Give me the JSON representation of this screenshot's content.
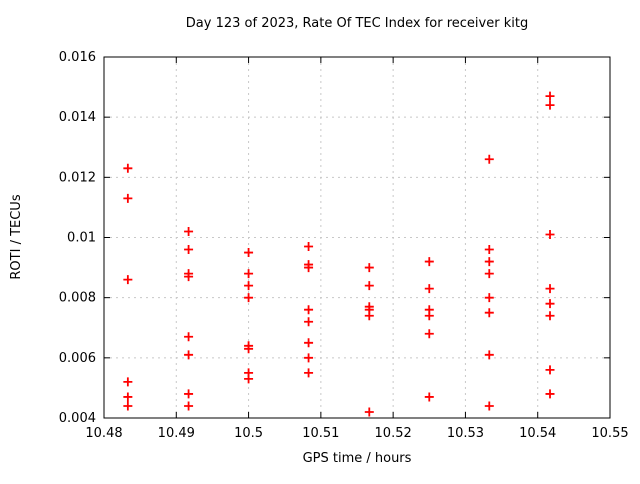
{
  "chart_data": {
    "type": "scatter",
    "title": "Day 123 of 2023, Rate Of TEC Index for receiver kitg",
    "xlabel": "GPS time / hours",
    "ylabel": "ROTI / TECUs",
    "xlim": [
      10.48,
      10.55
    ],
    "ylim": [
      0.004,
      0.016
    ],
    "xticks": [
      10.48,
      10.49,
      10.5,
      10.51,
      10.52,
      10.53,
      10.54,
      10.55
    ],
    "xtick_labels": [
      "10.48",
      "10.49",
      "10.5",
      "10.51",
      "10.52",
      "10.53",
      "10.54",
      "10.55"
    ],
    "yticks": [
      0.004,
      0.006,
      0.008,
      0.01,
      0.012,
      0.014,
      0.016
    ],
    "ytick_labels": [
      "0.004",
      "0.006",
      "0.008",
      "0.01",
      "0.012",
      "0.014",
      "0.016"
    ],
    "grid": true,
    "legend": "none",
    "marker": "plus",
    "marker_color": "#ff0000",
    "grid_color": "#c8c8c8",
    "border_color": "#000000",
    "background_color": "#ffffff",
    "series": [
      {
        "name": "ROTI",
        "points": [
          [
            10.4833,
            0.0123
          ],
          [
            10.4833,
            0.0113
          ],
          [
            10.4833,
            0.0086
          ],
          [
            10.4833,
            0.0052
          ],
          [
            10.4833,
            0.0047
          ],
          [
            10.4833,
            0.0044
          ],
          [
            10.4917,
            0.0102
          ],
          [
            10.4917,
            0.0096
          ],
          [
            10.4917,
            0.0088
          ],
          [
            10.4917,
            0.0087
          ],
          [
            10.4917,
            0.0067
          ],
          [
            10.4917,
            0.0061
          ],
          [
            10.4917,
            0.0048
          ],
          [
            10.4917,
            0.0044
          ],
          [
            10.5,
            0.0095
          ],
          [
            10.5,
            0.0088
          ],
          [
            10.5,
            0.0084
          ],
          [
            10.5,
            0.008
          ],
          [
            10.5,
            0.0064
          ],
          [
            10.5,
            0.0063
          ],
          [
            10.5,
            0.0055
          ],
          [
            10.5,
            0.0053
          ],
          [
            10.5083,
            0.0097
          ],
          [
            10.5083,
            0.0091
          ],
          [
            10.5083,
            0.009
          ],
          [
            10.5083,
            0.0076
          ],
          [
            10.5083,
            0.0072
          ],
          [
            10.5083,
            0.0065
          ],
          [
            10.5083,
            0.006
          ],
          [
            10.5083,
            0.0055
          ],
          [
            10.5167,
            0.009
          ],
          [
            10.5167,
            0.0084
          ],
          [
            10.5167,
            0.0077
          ],
          [
            10.5167,
            0.0076
          ],
          [
            10.5167,
            0.0074
          ],
          [
            10.5167,
            0.0042
          ],
          [
            10.525,
            0.0092
          ],
          [
            10.525,
            0.0083
          ],
          [
            10.525,
            0.0076
          ],
          [
            10.525,
            0.0074
          ],
          [
            10.525,
            0.0068
          ],
          [
            10.525,
            0.0047
          ],
          [
            10.5333,
            0.0126
          ],
          [
            10.5333,
            0.0096
          ],
          [
            10.5333,
            0.0092
          ],
          [
            10.5333,
            0.0088
          ],
          [
            10.5333,
            0.008
          ],
          [
            10.5333,
            0.0075
          ],
          [
            10.5333,
            0.0061
          ],
          [
            10.5333,
            0.0044
          ],
          [
            10.5417,
            0.0147
          ],
          [
            10.5417,
            0.0144
          ],
          [
            10.5417,
            0.0101
          ],
          [
            10.5417,
            0.0083
          ],
          [
            10.5417,
            0.0078
          ],
          [
            10.5417,
            0.0074
          ],
          [
            10.5417,
            0.0056
          ],
          [
            10.5417,
            0.0048
          ]
        ]
      }
    ]
  }
}
